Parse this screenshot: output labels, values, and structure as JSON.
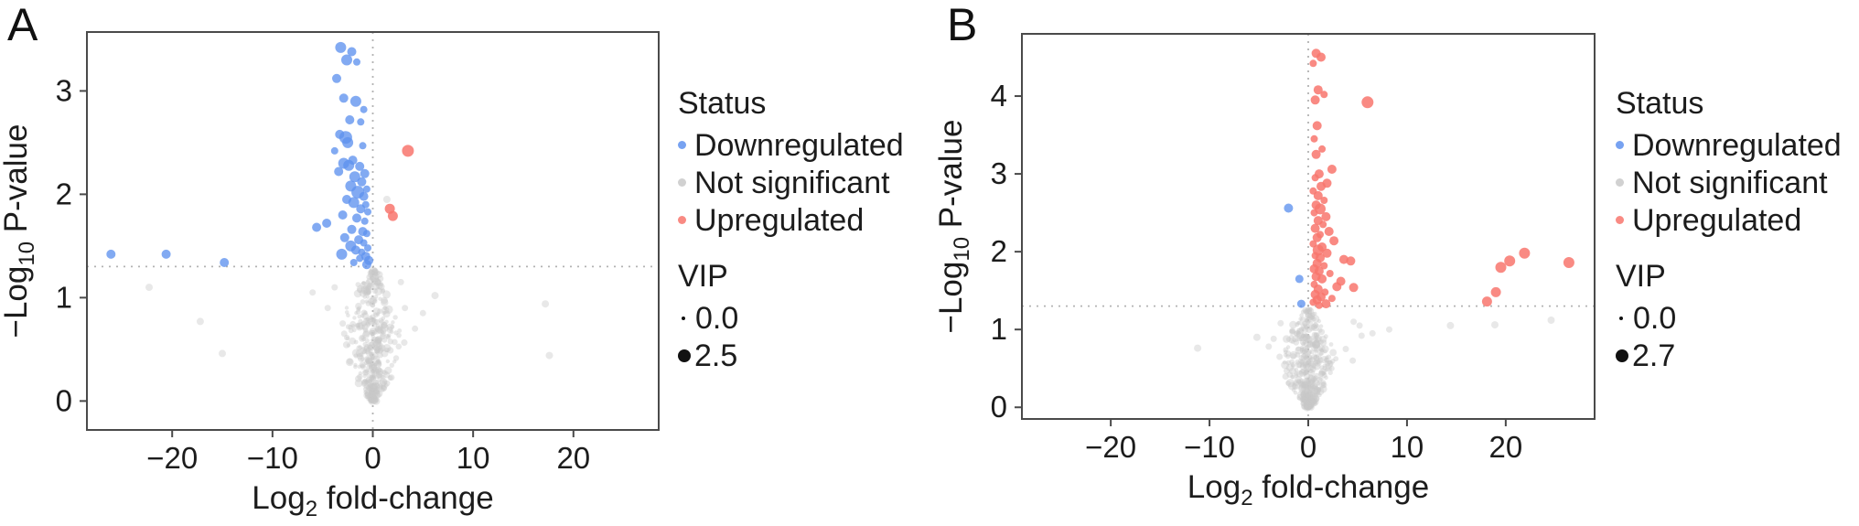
{
  "chart_data": [
    {
      "type": "scatter",
      "panel_label": "A",
      "xlabel_parts": {
        "pre": "Log",
        "sub": "2",
        "post": " fold-change"
      },
      "ylabel_parts": {
        "pre": "−Log",
        "sub": "10",
        "post": " P-value"
      },
      "x_axis": {
        "range": [
          -28.5,
          28.5
        ],
        "ticks": [
          {
            "v": -20,
            "label": "−20"
          },
          {
            "v": -10,
            "label": "−10"
          },
          {
            "v": 0,
            "label": "0"
          },
          {
            "v": 10,
            "label": "10"
          },
          {
            "v": 20,
            "label": "20"
          }
        ]
      },
      "y_axis": {
        "range": [
          -0.28,
          3.57
        ],
        "ticks": [
          {
            "v": 0,
            "label": "0"
          },
          {
            "v": 1,
            "label": "1"
          },
          {
            "v": 2,
            "label": "2"
          },
          {
            "v": 3,
            "label": "3"
          }
        ]
      },
      "threshold_lines": {
        "h_y": 1.301,
        "v_x": 0
      },
      "grid": false,
      "legend": {
        "status_title": "Status",
        "items": [
          "Downregulated",
          "Not significant",
          "Upregulated"
        ],
        "vip_title": "VIP",
        "vip_min_label": "0.0",
        "vip_max_label": "2.5"
      },
      "series": [
        {
          "name": "Downregulated",
          "color": "#5f92ee",
          "opacity": 0.78,
          "points": [
            [
              -3.2,
              3.42,
              6
            ],
            [
              -2.1,
              3.38,
              5
            ],
            [
              -2.6,
              3.3,
              6
            ],
            [
              -1.6,
              3.28,
              4
            ],
            [
              -3.6,
              3.12,
              5
            ],
            [
              -2.9,
              2.93,
              5
            ],
            [
              -1.7,
              2.9,
              6
            ],
            [
              -0.9,
              2.82,
              4
            ],
            [
              -2.3,
              2.72,
              5
            ],
            [
              -1.2,
              2.7,
              4
            ],
            [
              -3.3,
              2.58,
              5
            ],
            [
              -2.7,
              2.55,
              7
            ],
            [
              -2.5,
              2.5,
              6
            ],
            [
              -1.0,
              2.47,
              4
            ],
            [
              -3.8,
              2.42,
              4
            ],
            [
              -2.0,
              2.33,
              5
            ],
            [
              -2.9,
              2.3,
              6
            ],
            [
              -2.4,
              2.28,
              6
            ],
            [
              -1.3,
              2.27,
              5
            ],
            [
              -3.4,
              2.22,
              5
            ],
            [
              -0.8,
              2.2,
              5
            ],
            [
              -1.8,
              2.17,
              6
            ],
            [
              -1.1,
              2.12,
              5
            ],
            [
              -2.2,
              2.08,
              6
            ],
            [
              -0.6,
              2.05,
              4
            ],
            [
              -1.5,
              2.02,
              7
            ],
            [
              -0.9,
              1.98,
              5
            ],
            [
              -2.6,
              1.95,
              5
            ],
            [
              -1.9,
              1.92,
              6
            ],
            [
              -0.7,
              1.9,
              4
            ],
            [
              -1.2,
              1.86,
              5
            ],
            [
              -0.5,
              1.83,
              4
            ],
            [
              -3.0,
              1.8,
              5
            ],
            [
              -1.6,
              1.77,
              5
            ],
            [
              -0.8,
              1.74,
              4
            ],
            [
              -4.6,
              1.72,
              5
            ],
            [
              -5.6,
              1.68,
              5
            ],
            [
              -2.1,
              1.66,
              5
            ],
            [
              -1.0,
              1.64,
              5
            ],
            [
              -0.6,
              1.62,
              4
            ],
            [
              -2.8,
              1.58,
              5
            ],
            [
              -1.4,
              1.56,
              5
            ],
            [
              -0.9,
              1.53,
              4
            ],
            [
              -2.2,
              1.5,
              6
            ],
            [
              -0.5,
              1.48,
              4
            ],
            [
              -1.7,
              1.46,
              5
            ],
            [
              -1.1,
              1.44,
              4
            ],
            [
              -3.1,
              1.42,
              6
            ],
            [
              -0.7,
              1.4,
              5
            ],
            [
              -1.3,
              1.38,
              4
            ],
            [
              -0.4,
              1.36,
              5
            ],
            [
              -1.9,
              1.34,
              4
            ],
            [
              -0.6,
              1.32,
              5
            ],
            [
              -26.1,
              1.42,
              5
            ],
            [
              -20.6,
              1.42,
              5
            ],
            [
              -14.8,
              1.34,
              5
            ]
          ]
        },
        {
          "name": "Not significant",
          "color": "#c9c9c9",
          "opacity": 0.42,
          "points": [
            [
              -22.3,
              1.1,
              4
            ],
            [
              -17.2,
              0.77,
              4
            ],
            [
              -15.0,
              0.46,
              4
            ],
            [
              6.2,
              1.02,
              4
            ],
            [
              17.2,
              0.94,
              4
            ],
            [
              17.6,
              0.44,
              4
            ],
            [
              5.0,
              0.85,
              3.5
            ],
            [
              -6.0,
              1.05,
              3.5
            ],
            [
              1.4,
              1.95,
              4
            ],
            [
              -3.8,
              1.1,
              3.5
            ],
            [
              -4.5,
              0.9,
              3.5
            ],
            [
              3.2,
              0.9,
              3.5
            ],
            [
              2.8,
              1.15,
              3.5
            ],
            [
              4.2,
              0.7,
              3.5
            ],
            [
              -3.0,
              0.75,
              3.5
            ]
          ],
          "cloud": {
            "seed": 42,
            "count": 420,
            "y_max": 1.28,
            "width_base": 0.45,
            "width_peak": 2.9,
            "r_min": 2.2,
            "r_max": 4.6
          }
        },
        {
          "name": "Upregulated",
          "color": "#f8766d",
          "opacity": 0.85,
          "points": [
            [
              3.5,
              2.42,
              6.5
            ],
            [
              1.7,
              1.86,
              5.5
            ],
            [
              2.0,
              1.79,
              5.5
            ]
          ]
        }
      ]
    },
    {
      "type": "scatter",
      "panel_label": "B",
      "xlabel_parts": {
        "pre": "Log",
        "sub": "2",
        "post": " fold-change"
      },
      "ylabel_parts": {
        "pre": "−Log",
        "sub": "10",
        "post": " P-value"
      },
      "x_axis": {
        "range": [
          -29,
          29
        ],
        "ticks": [
          {
            "v": -20,
            "label": "−20"
          },
          {
            "v": -10,
            "label": "−10"
          },
          {
            "v": 0,
            "label": "0"
          },
          {
            "v": 10,
            "label": "10"
          },
          {
            "v": 20,
            "label": "20"
          }
        ]
      },
      "y_axis": {
        "range": [
          -0.15,
          4.8
        ],
        "ticks": [
          {
            "v": 0,
            "label": "0"
          },
          {
            "v": 1,
            "label": "1"
          },
          {
            "v": 2,
            "label": "2"
          },
          {
            "v": 3,
            "label": "3"
          },
          {
            "v": 4,
            "label": "4"
          }
        ]
      },
      "threshold_lines": {
        "h_y": 1.301,
        "v_x": 0
      },
      "grid": false,
      "legend": {
        "status_title": "Status",
        "items": [
          "Downregulated",
          "Not significant",
          "Upregulated"
        ],
        "vip_title": "VIP",
        "vip_min_label": "0.0",
        "vip_max_label": "2.7"
      },
      "series": [
        {
          "name": "Downregulated",
          "color": "#5f92ee",
          "opacity": 0.78,
          "points": [
            [
              -2.0,
              2.56,
              5
            ],
            [
              -0.9,
              1.65,
              4.5
            ],
            [
              -0.7,
              1.33,
              4.5
            ]
          ]
        },
        {
          "name": "Not significant",
          "color": "#c9c9c9",
          "opacity": 0.42,
          "points": [
            [
              -11.2,
              0.76,
              4
            ],
            [
              -5.2,
              0.9,
              4
            ],
            [
              -4.0,
              0.78,
              3.5
            ],
            [
              14.4,
              1.05,
              4
            ],
            [
              18.9,
              1.06,
              4
            ],
            [
              24.6,
              1.12,
              4
            ],
            [
              8.2,
              1.0,
              3.5
            ],
            [
              5.4,
              0.92,
              3.5
            ],
            [
              -2.8,
              1.08,
              3.5
            ],
            [
              4.6,
              1.1,
              3.5
            ],
            [
              -3.5,
              0.88,
              3.5
            ],
            [
              -2.9,
              0.65,
              3.5
            ],
            [
              3.8,
              0.75,
              3.5
            ],
            [
              4.5,
              0.6,
              3.5
            ],
            [
              5.2,
              1.05,
              3.5
            ],
            [
              6.5,
              0.95,
              3.5
            ]
          ],
          "cloud": {
            "seed": 7,
            "count": 430,
            "y_max": 1.26,
            "width_base": 0.4,
            "width_peak": 2.6,
            "r_min": 2.2,
            "r_max": 4.6
          }
        },
        {
          "name": "Upregulated",
          "color": "#f8766d",
          "opacity": 0.85,
          "points": [
            [
              0.8,
              4.55,
              5
            ],
            [
              1.3,
              4.5,
              5
            ],
            [
              0.5,
              4.42,
              4
            ],
            [
              1.0,
              4.08,
              5
            ],
            [
              1.6,
              4.02,
              4
            ],
            [
              0.7,
              3.95,
              5
            ],
            [
              6.0,
              3.92,
              6.5
            ],
            [
              0.9,
              3.62,
              5
            ],
            [
              0.6,
              3.45,
              4
            ],
            [
              1.4,
              3.32,
              4
            ],
            [
              0.8,
              3.25,
              5
            ],
            [
              2.4,
              3.06,
              5
            ],
            [
              1.1,
              3.0,
              5
            ],
            [
              0.7,
              2.95,
              4
            ],
            [
              1.9,
              2.88,
              5
            ],
            [
              1.3,
              2.84,
              5
            ],
            [
              0.5,
              2.78,
              4
            ],
            [
              1.0,
              2.72,
              5
            ],
            [
              1.6,
              2.66,
              4
            ],
            [
              0.8,
              2.6,
              5
            ],
            [
              1.2,
              2.55,
              6
            ],
            [
              0.6,
              2.5,
              4
            ],
            [
              1.8,
              2.45,
              5
            ],
            [
              1.0,
              2.4,
              5
            ],
            [
              1.5,
              2.35,
              4
            ],
            [
              0.7,
              2.3,
              5
            ],
            [
              2.1,
              2.26,
              5
            ],
            [
              1.2,
              2.22,
              4
            ],
            [
              0.9,
              2.18,
              5
            ],
            [
              2.6,
              2.14,
              5
            ],
            [
              0.5,
              2.1,
              4
            ],
            [
              1.4,
              2.06,
              5
            ],
            [
              1.0,
              2.02,
              6
            ],
            [
              1.9,
              1.98,
              5
            ],
            [
              0.7,
              1.95,
              4
            ],
            [
              1.2,
              1.92,
              5
            ],
            [
              3.6,
              1.9,
              5
            ],
            [
              4.3,
              1.88,
              5
            ],
            [
              0.9,
              1.85,
              5
            ],
            [
              1.6,
              1.82,
              4
            ],
            [
              0.6,
              1.78,
              5
            ],
            [
              1.1,
              1.75,
              5
            ],
            [
              2.2,
              1.72,
              4
            ],
            [
              0.8,
              1.68,
              5
            ],
            [
              1.4,
              1.65,
              5
            ],
            [
              3.3,
              1.62,
              5
            ],
            [
              0.6,
              1.58,
              4
            ],
            [
              2.9,
              1.55,
              5
            ],
            [
              4.6,
              1.54,
              5
            ],
            [
              1.0,
              1.52,
              5
            ],
            [
              1.7,
              1.48,
              4
            ],
            [
              0.7,
              1.45,
              5
            ],
            [
              1.3,
              1.42,
              5
            ],
            [
              2.4,
              1.4,
              4
            ],
            [
              0.9,
              1.38,
              5
            ],
            [
              0.5,
              1.35,
              4
            ],
            [
              1.8,
              1.33,
              5
            ],
            [
              1.1,
              1.31,
              4
            ],
            [
              18.1,
              1.36,
              5.5
            ],
            [
              19.0,
              1.48,
              5.5
            ],
            [
              19.5,
              1.8,
              6
            ],
            [
              20.4,
              1.88,
              6
            ],
            [
              21.9,
              1.98,
              6
            ],
            [
              26.4,
              1.86,
              6
            ]
          ]
        }
      ]
    }
  ]
}
